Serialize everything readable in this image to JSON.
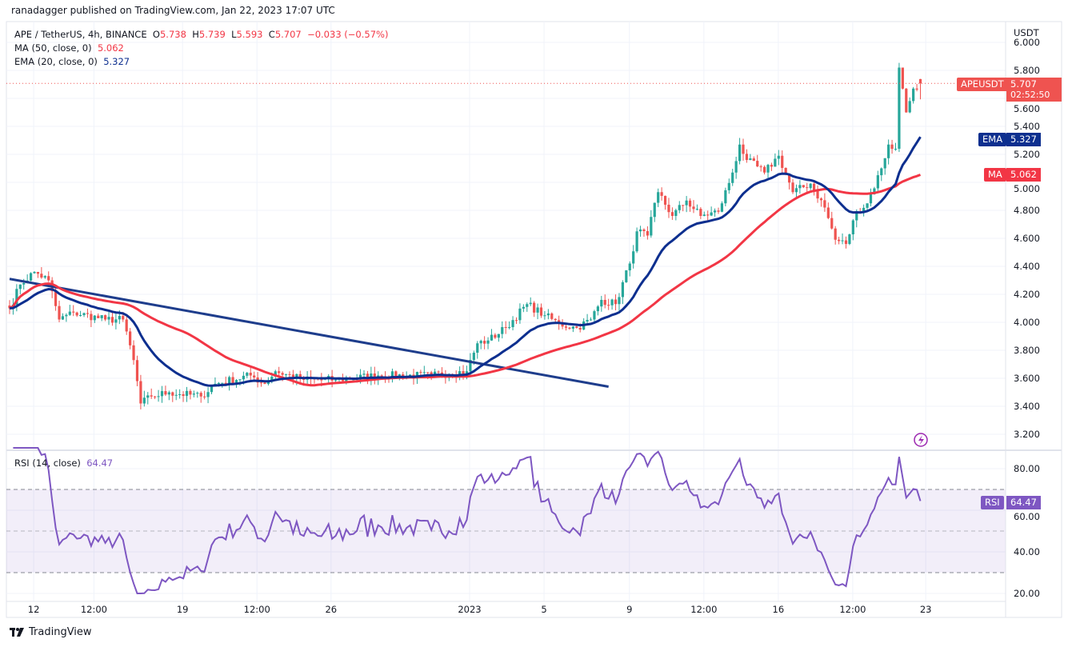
{
  "header": {
    "published": "ranadagger published on TradingView.com, Jan 22, 2023 17:07 UTC"
  },
  "legend": {
    "symbol": "APE / TetherUS, 4h, BINANCE",
    "o_label": "O",
    "open": "5.738",
    "h_label": "H",
    "high": "5.739",
    "l_label": "L",
    "low": "5.593",
    "c_label": "C",
    "close": "5.707",
    "change": "−0.033 (−0.57%)",
    "ma_label": "MA (50, close, 0)",
    "ma_value": "5.062",
    "ema_label": "EMA (20, close, 0)",
    "ema_value": "5.327",
    "rsi_label": "RSI (14, close)",
    "rsi_value": "64.47"
  },
  "axis": {
    "currency": "USDT"
  },
  "badges": {
    "symbol": "APEUSDT",
    "price": "5.707",
    "countdown": "02:52:50",
    "ema": "EMA",
    "ema_value": "5.327",
    "ma": "MA",
    "ma_value": "5.062",
    "rsi": "RSI",
    "rsi_value": "64.47"
  },
  "footer": {
    "brand": "TradingView"
  },
  "colors": {
    "up": "#26a69a",
    "down": "#ef5350",
    "ma": "#f23645",
    "ema": "#0d2f8f",
    "trend": "#1e3d8c",
    "rsi": "#7e57c2"
  },
  "chart_data": {
    "type": "candlestick",
    "title": "APE / TetherUS, 4h, BINANCE",
    "ylabel": "USDT",
    "ylim": [
      3.15,
      6.05
    ],
    "price_ticks": [
      "3.200",
      "3.400",
      "3.600",
      "3.800",
      "4.000",
      "4.200",
      "4.400",
      "4.600",
      "4.800",
      "5.000",
      "5.200",
      "5.400",
      "5.600",
      "5.800",
      "6.000"
    ],
    "x_ticks": [
      {
        "i": 6.8,
        "label": "12"
      },
      {
        "i": 23.8,
        "label": "12:00"
      },
      {
        "i": 48.8,
        "label": "19"
      },
      {
        "i": 69.8,
        "label": "12:00"
      },
      {
        "i": 90.7,
        "label": "26"
      },
      {
        "i": 129.8,
        "label": "2023"
      },
      {
        "i": 150.8,
        "label": "5"
      },
      {
        "i": 174.9,
        "label": "9"
      },
      {
        "i": 195.9,
        "label": "12:00"
      },
      {
        "i": 216.9,
        "label": "16"
      },
      {
        "i": 237.9,
        "label": "12:00"
      },
      {
        "i": 258.5,
        "label": "23"
      }
    ],
    "close_keypoints": [
      [
        0,
        4.1
      ],
      [
        3,
        4.27
      ],
      [
        7,
        4.36
      ],
      [
        11,
        4.3
      ],
      [
        14,
        4.02
      ],
      [
        18,
        4.07
      ],
      [
        27,
        4.02
      ],
      [
        32,
        4.02
      ],
      [
        35,
        3.73
      ],
      [
        37,
        3.42
      ],
      [
        40,
        3.47
      ],
      [
        45,
        3.5
      ],
      [
        54,
        3.47
      ],
      [
        58,
        3.56
      ],
      [
        68,
        3.62
      ],
      [
        72,
        3.56
      ],
      [
        75,
        3.65
      ],
      [
        83,
        3.59
      ],
      [
        92,
        3.59
      ],
      [
        104,
        3.62
      ],
      [
        119,
        3.62
      ],
      [
        129,
        3.65
      ],
      [
        132,
        3.85
      ],
      [
        135,
        3.87
      ],
      [
        140,
        3.96
      ],
      [
        146,
        4.13
      ],
      [
        151,
        4.05
      ],
      [
        155,
        3.99
      ],
      [
        160,
        3.96
      ],
      [
        164,
        4.02
      ],
      [
        167,
        4.16
      ],
      [
        171,
        4.13
      ],
      [
        175,
        4.42
      ],
      [
        177,
        4.65
      ],
      [
        180,
        4.62
      ],
      [
        183,
        4.93
      ],
      [
        187,
        4.76
      ],
      [
        191,
        4.87
      ],
      [
        195,
        4.76
      ],
      [
        200,
        4.79
      ],
      [
        204,
        5.07
      ],
      [
        206,
        5.27
      ],
      [
        208,
        5.16
      ],
      [
        213,
        5.07
      ],
      [
        217,
        5.19
      ],
      [
        221,
        4.93
      ],
      [
        226,
        4.99
      ],
      [
        230,
        4.82
      ],
      [
        233,
        4.59
      ],
      [
        236,
        4.56
      ],
      [
        239,
        4.79
      ],
      [
        242,
        4.85
      ],
      [
        246,
        5.1
      ],
      [
        248,
        5.27
      ],
      [
        250,
        5.24
      ],
      [
        251,
        5.82
      ],
      [
        253,
        5.5
      ],
      [
        255,
        5.67
      ],
      [
        257,
        5.707
      ]
    ],
    "last_candle": {
      "open": 5.738,
      "high": 5.739,
      "low": 5.593,
      "close": 5.707
    },
    "trendline": [
      [
        0,
        4.31
      ],
      [
        169,
        3.54
      ]
    ],
    "ma_period": 50,
    "ema_period": 20,
    "rsi_period": 14,
    "rsi_ticks": [
      "20.00",
      "40.00",
      "60.00",
      "80.00"
    ],
    "rsi_bands": [
      30,
      50,
      70
    ],
    "rsi_last": 64.47
  }
}
